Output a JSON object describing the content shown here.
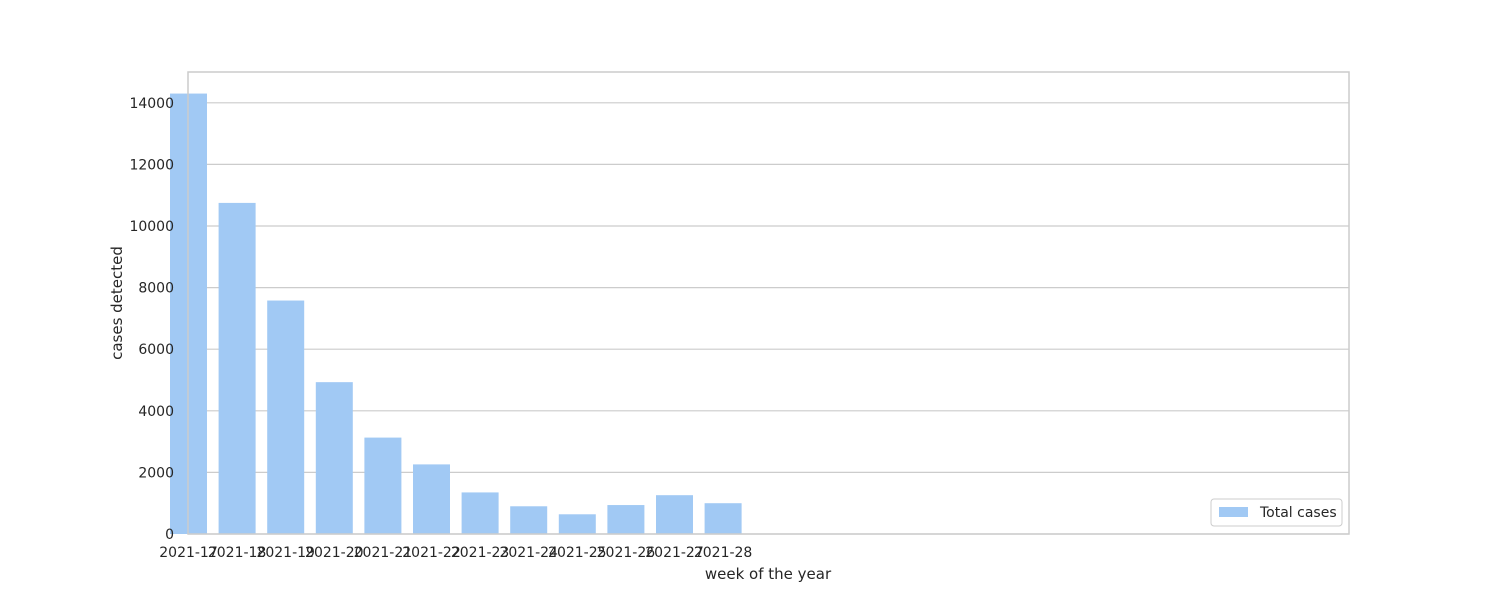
{
  "chart_data": {
    "type": "bar",
    "title": "",
    "xlabel": "week of the year",
    "ylabel": "cases detected",
    "categories": [
      "2021-17",
      "2021-18",
      "2021-19",
      "2021-20",
      "2021-21",
      "2021-22",
      "2021-23",
      "2021-24",
      "2021-25",
      "2021-26",
      "2021-27",
      "2021-28"
    ],
    "series": [
      {
        "name": "Total cases",
        "values": [
          14300,
          10750,
          7580,
          4930,
          3130,
          2260,
          1350,
          900,
          640,
          940,
          1260,
          1000
        ]
      }
    ],
    "ylim": [
      0,
      15000
    ],
    "yticks": [
      0,
      2000,
      4000,
      6000,
      8000,
      10000,
      12000,
      14000
    ],
    "ytick_labels": [
      "0",
      "2000",
      "4000",
      "6000",
      "8000",
      "10000",
      "12000",
      "14000"
    ],
    "grid": "horizontal",
    "legend_position": "lower-right",
    "colors": {
      "bar": "#a1c9f4",
      "grid": "#cccccc",
      "spine": "#cccccc",
      "text": "#262626"
    }
  }
}
